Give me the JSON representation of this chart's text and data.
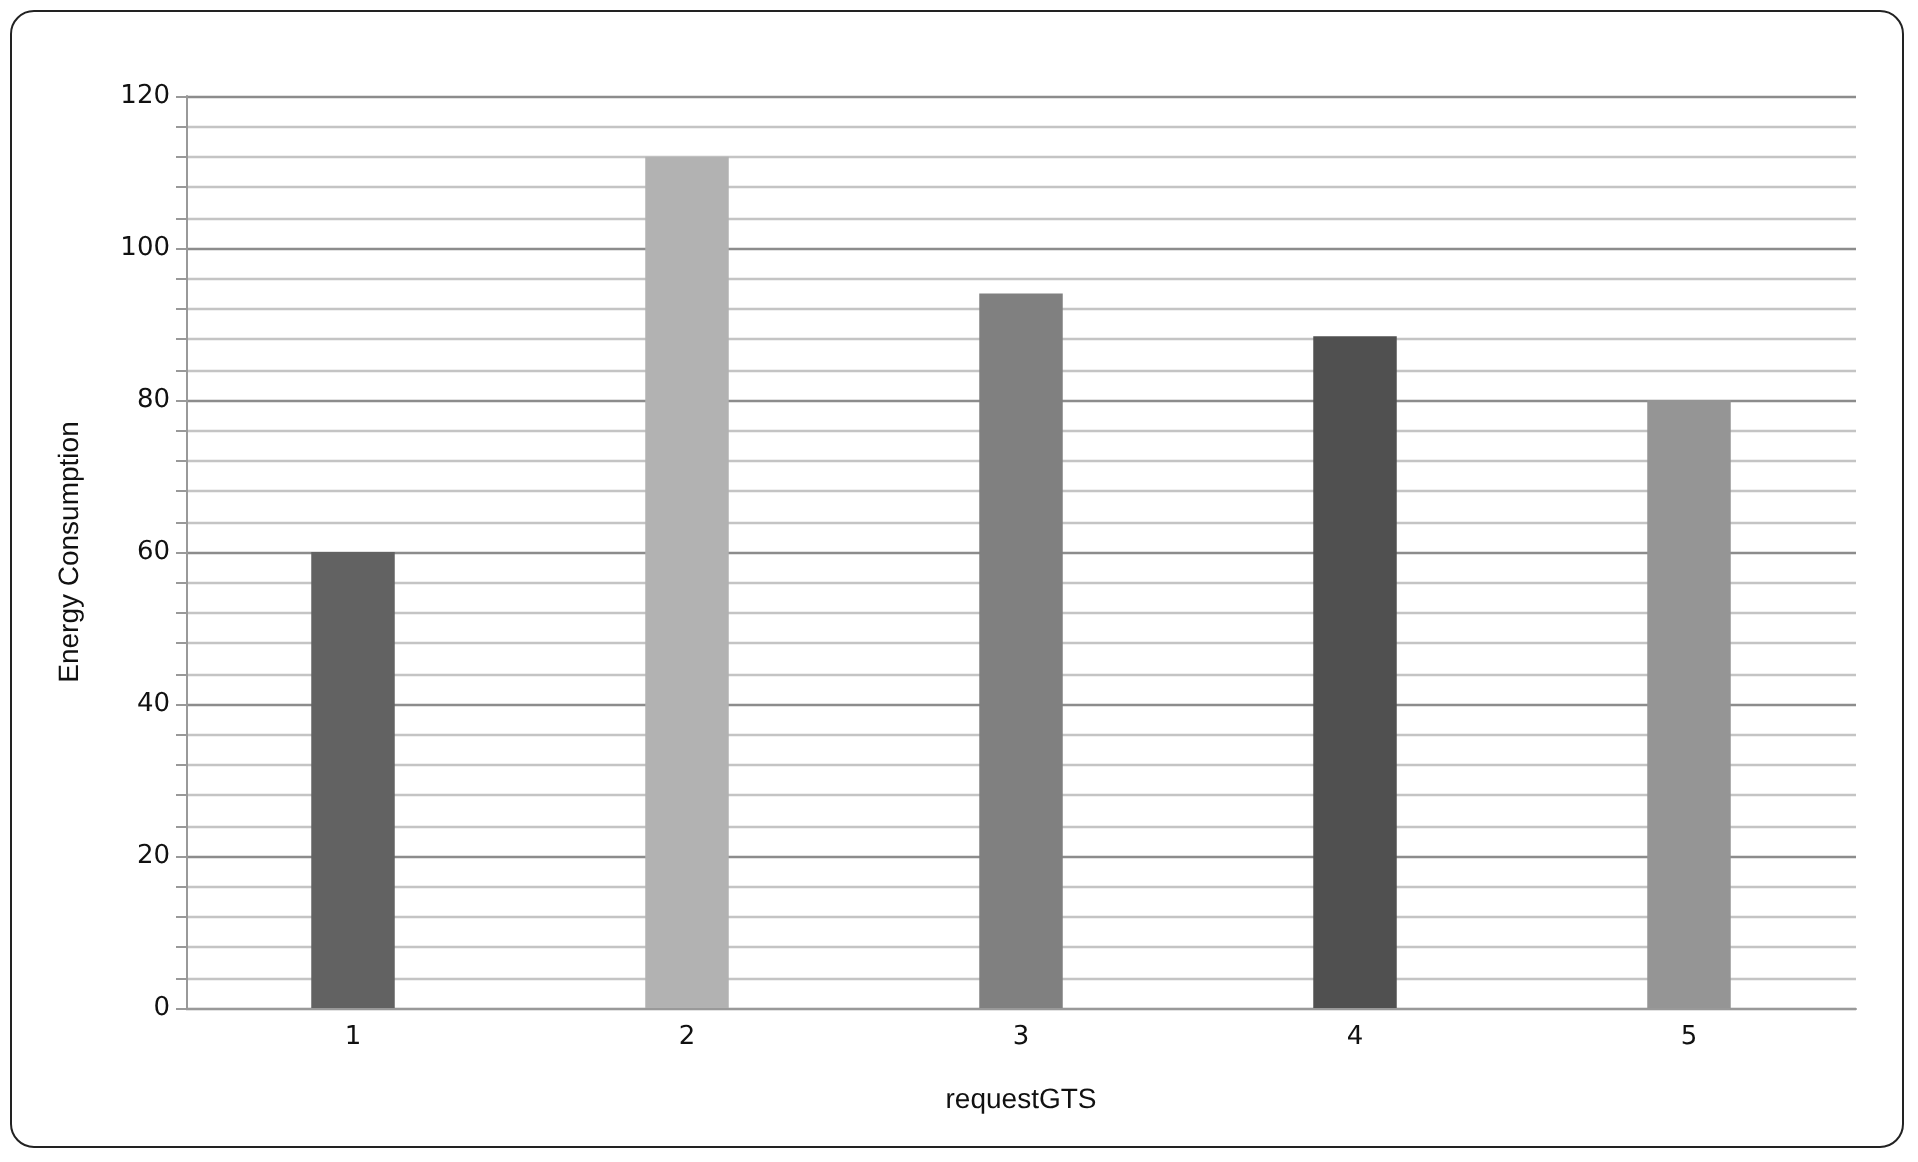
{
  "chart_data": {
    "type": "bar",
    "xlabel": "requestGTS",
    "ylabel": "Energy Consumption",
    "categories": [
      "1",
      "2",
      "3",
      "4",
      "5"
    ],
    "values": [
      60,
      112,
      94,
      88.4,
      80
    ],
    "colors": [
      "#626262",
      "#b2b2b2",
      "#808080",
      "#505050",
      "#959595"
    ],
    "ylim": [
      0,
      120
    ],
    "yticks": [
      0,
      {
        "value": 4,
        "label": null
      },
      {
        "value": 8,
        "label": null
      },
      {
        "value": 12,
        "label": null
      },
      {
        "value": 16,
        "label": null
      },
      20,
      {
        "value": 24,
        "label": null
      },
      {
        "value": 28,
        "label": null
      },
      {
        "value": 32,
        "label": null
      },
      {
        "value": 36,
        "label": null
      },
      40,
      {
        "value": 44,
        "label": null
      },
      {
        "value": 48,
        "label": null
      },
      {
        "value": 52,
        "label": null
      },
      {
        "value": 56,
        "label": null
      },
      60,
      {
        "value": 64,
        "label": null
      },
      {
        "value": 68,
        "label": null
      },
      {
        "value": 72,
        "label": null
      },
      {
        "value": 76,
        "label": null
      },
      80,
      {
        "value": 84,
        "label": null
      },
      {
        "value": 88,
        "label": null
      },
      {
        "value": 92,
        "label": null
      },
      {
        "value": 96,
        "label": null
      },
      100,
      {
        "value": 104,
        "label": null
      },
      {
        "value": 108,
        "label": null
      },
      {
        "value": 112,
        "label": null
      },
      {
        "value": 116,
        "label": null
      },
      120
    ],
    "grid": "y"
  }
}
